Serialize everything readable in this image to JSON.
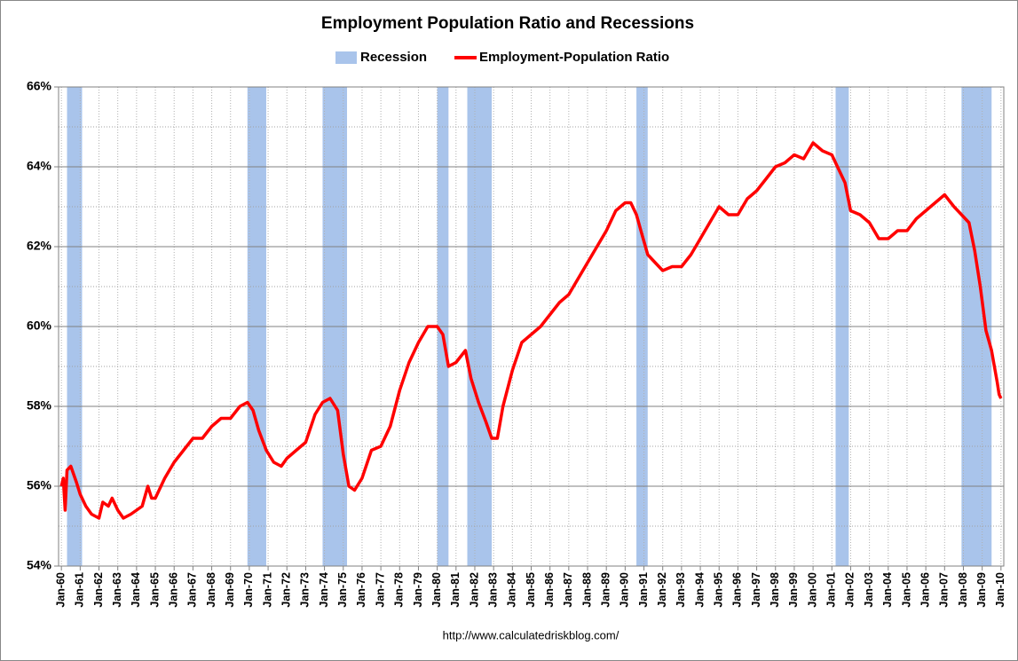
{
  "chart_data": {
    "type": "line",
    "title": "Employment Population Ratio and Recessions",
    "source": "http://www.calculatedriskblog.com/",
    "xlim": [
      1959.85,
      2010.15
    ],
    "xticks": [
      {
        "value": 1960,
        "label": "Jan-60"
      },
      {
        "value": 1961,
        "label": "Jan-61"
      },
      {
        "value": 1962,
        "label": "Jan-62"
      },
      {
        "value": 1963,
        "label": "Jan-63"
      },
      {
        "value": 1964,
        "label": "Jan-64"
      },
      {
        "value": 1965,
        "label": "Jan-65"
      },
      {
        "value": 1966,
        "label": "Jan-66"
      },
      {
        "value": 1967,
        "label": "Jan-67"
      },
      {
        "value": 1968,
        "label": "Jan-68"
      },
      {
        "value": 1969,
        "label": "Jan-69"
      },
      {
        "value": 1970,
        "label": "Jan-70"
      },
      {
        "value": 1971,
        "label": "Jan-71"
      },
      {
        "value": 1972,
        "label": "Jan-72"
      },
      {
        "value": 1973,
        "label": "Jan-73"
      },
      {
        "value": 1974,
        "label": "Jan-74"
      },
      {
        "value": 1975,
        "label": "Jan-75"
      },
      {
        "value": 1976,
        "label": "Jan-76"
      },
      {
        "value": 1977,
        "label": "Jan-77"
      },
      {
        "value": 1978,
        "label": "Jan-78"
      },
      {
        "value": 1979,
        "label": "Jan-79"
      },
      {
        "value": 1980,
        "label": "Jan-80"
      },
      {
        "value": 1981,
        "label": "Jan-81"
      },
      {
        "value": 1982,
        "label": "Jan-82"
      },
      {
        "value": 1983,
        "label": "Jan-83"
      },
      {
        "value": 1984,
        "label": "Jan-84"
      },
      {
        "value": 1985,
        "label": "Jan-85"
      },
      {
        "value": 1986,
        "label": "Jan-86"
      },
      {
        "value": 1987,
        "label": "Jan-87"
      },
      {
        "value": 1988,
        "label": "Jan-88"
      },
      {
        "value": 1989,
        "label": "Jan-89"
      },
      {
        "value": 1990,
        "label": "Jan-90"
      },
      {
        "value": 1991,
        "label": "Jan-91"
      },
      {
        "value": 1992,
        "label": "Jan-92"
      },
      {
        "value": 1993,
        "label": "Jan-93"
      },
      {
        "value": 1994,
        "label": "Jan-94"
      },
      {
        "value": 1995,
        "label": "Jan-95"
      },
      {
        "value": 1996,
        "label": "Jan-96"
      },
      {
        "value": 1997,
        "label": "Jan-97"
      },
      {
        "value": 1998,
        "label": "Jan-98"
      },
      {
        "value": 1999,
        "label": "Jan-99"
      },
      {
        "value": 2000,
        "label": "Jan-00"
      },
      {
        "value": 2001,
        "label": "Jan-01"
      },
      {
        "value": 2002,
        "label": "Jan-02"
      },
      {
        "value": 2003,
        "label": "Jan-03"
      },
      {
        "value": 2004,
        "label": "Jan-04"
      },
      {
        "value": 2005,
        "label": "Jan-05"
      },
      {
        "value": 2006,
        "label": "Jan-06"
      },
      {
        "value": 2007,
        "label": "Jan-07"
      },
      {
        "value": 2008,
        "label": "Jan-08"
      },
      {
        "value": 2009,
        "label": "Jan-09"
      },
      {
        "value": 2010,
        "label": "Jan-10"
      }
    ],
    "ylim": [
      54,
      66
    ],
    "yticks": [
      {
        "value": 54,
        "label": "54%"
      },
      {
        "value": 56,
        "label": "56%"
      },
      {
        "value": 58,
        "label": "58%"
      },
      {
        "value": 60,
        "label": "60%"
      },
      {
        "value": 62,
        "label": "62%"
      },
      {
        "value": 64,
        "label": "64%"
      },
      {
        "value": 66,
        "label": "66%"
      }
    ],
    "yminorticks": [
      55,
      57,
      59,
      61,
      63,
      65
    ],
    "grid": true,
    "legend": "top",
    "recessions": {
      "name": "Recession",
      "color": "#a9c4eb",
      "ranges": [
        [
          1960.3,
          1961.1
        ],
        [
          1969.9,
          1970.9
        ],
        [
          1973.9,
          1975.2
        ],
        [
          1980.0,
          1980.6
        ],
        [
          1981.6,
          1982.9
        ],
        [
          1990.6,
          1991.2
        ],
        [
          2001.2,
          2001.9
        ],
        [
          2007.9,
          2009.5
        ]
      ]
    },
    "series": [
      {
        "name": "Employment-Population Ratio",
        "color": "#ff0000",
        "x": [
          1960.0,
          1960.1,
          1960.2,
          1960.3,
          1960.5,
          1960.8,
          1961.0,
          1961.3,
          1961.6,
          1962.0,
          1962.2,
          1962.5,
          1962.7,
          1963.0,
          1963.3,
          1963.7,
          1964.0,
          1964.3,
          1964.6,
          1964.8,
          1965.0,
          1965.5,
          1966.0,
          1966.5,
          1967.0,
          1967.5,
          1968.0,
          1968.5,
          1969.0,
          1969.5,
          1969.9,
          1970.2,
          1970.5,
          1970.9,
          1971.3,
          1971.7,
          1972.0,
          1972.5,
          1973.0,
          1973.5,
          1973.9,
          1974.3,
          1974.7,
          1975.0,
          1975.3,
          1975.6,
          1976.0,
          1976.5,
          1977.0,
          1977.5,
          1978.0,
          1978.5,
          1979.0,
          1979.5,
          1980.0,
          1980.3,
          1980.6,
          1981.0,
          1981.5,
          1981.8,
          1982.2,
          1982.6,
          1982.9,
          1983.2,
          1983.5,
          1984.0,
          1984.5,
          1985.0,
          1985.5,
          1986.0,
          1986.5,
          1987.0,
          1987.5,
          1988.0,
          1988.5,
          1989.0,
          1989.5,
          1990.0,
          1990.3,
          1990.6,
          1990.9,
          1991.2,
          1991.6,
          1992.0,
          1992.5,
          1993.0,
          1993.5,
          1994.0,
          1994.5,
          1995.0,
          1995.5,
          1996.0,
          1996.5,
          1997.0,
          1997.5,
          1998.0,
          1998.5,
          1999.0,
          1999.5,
          2000.0,
          2000.5,
          2001.0,
          2001.3,
          2001.7,
          2002.0,
          2002.5,
          2003.0,
          2003.5,
          2004.0,
          2004.5,
          2005.0,
          2005.5,
          2006.0,
          2006.5,
          2007.0,
          2007.5,
          2007.9,
          2008.3,
          2008.6,
          2008.9,
          2009.2,
          2009.5,
          2009.8,
          2009.9,
          2010.0
        ],
        "values": [
          56.0,
          56.2,
          55.4,
          56.4,
          56.5,
          56.1,
          55.8,
          55.5,
          55.3,
          55.2,
          55.6,
          55.5,
          55.7,
          55.4,
          55.2,
          55.3,
          55.4,
          55.5,
          56.0,
          55.7,
          55.7,
          56.2,
          56.6,
          56.9,
          57.2,
          57.2,
          57.5,
          57.7,
          57.7,
          58.0,
          58.1,
          57.9,
          57.4,
          56.9,
          56.6,
          56.5,
          56.7,
          56.9,
          57.1,
          57.8,
          58.1,
          58.2,
          57.9,
          56.8,
          56.0,
          55.9,
          56.2,
          56.9,
          57.0,
          57.5,
          58.4,
          59.1,
          59.6,
          60.0,
          60.0,
          59.8,
          59.0,
          59.1,
          59.4,
          58.7,
          58.1,
          57.6,
          57.2,
          57.2,
          58.0,
          58.9,
          59.6,
          59.8,
          60.0,
          60.3,
          60.6,
          60.8,
          61.2,
          61.6,
          62.0,
          62.4,
          62.9,
          63.1,
          63.1,
          62.8,
          62.3,
          61.8,
          61.6,
          61.4,
          61.5,
          61.5,
          61.8,
          62.2,
          62.6,
          63.0,
          62.8,
          62.8,
          63.2,
          63.4,
          63.7,
          64.0,
          64.1,
          64.3,
          64.2,
          64.6,
          64.4,
          64.3,
          64.0,
          63.6,
          62.9,
          62.8,
          62.6,
          62.2,
          62.2,
          62.4,
          62.4,
          62.7,
          62.9,
          63.1,
          63.3,
          63.0,
          62.8,
          62.6,
          61.9,
          61.0,
          59.9,
          59.4,
          58.6,
          58.3,
          58.2
        ]
      }
    ]
  }
}
